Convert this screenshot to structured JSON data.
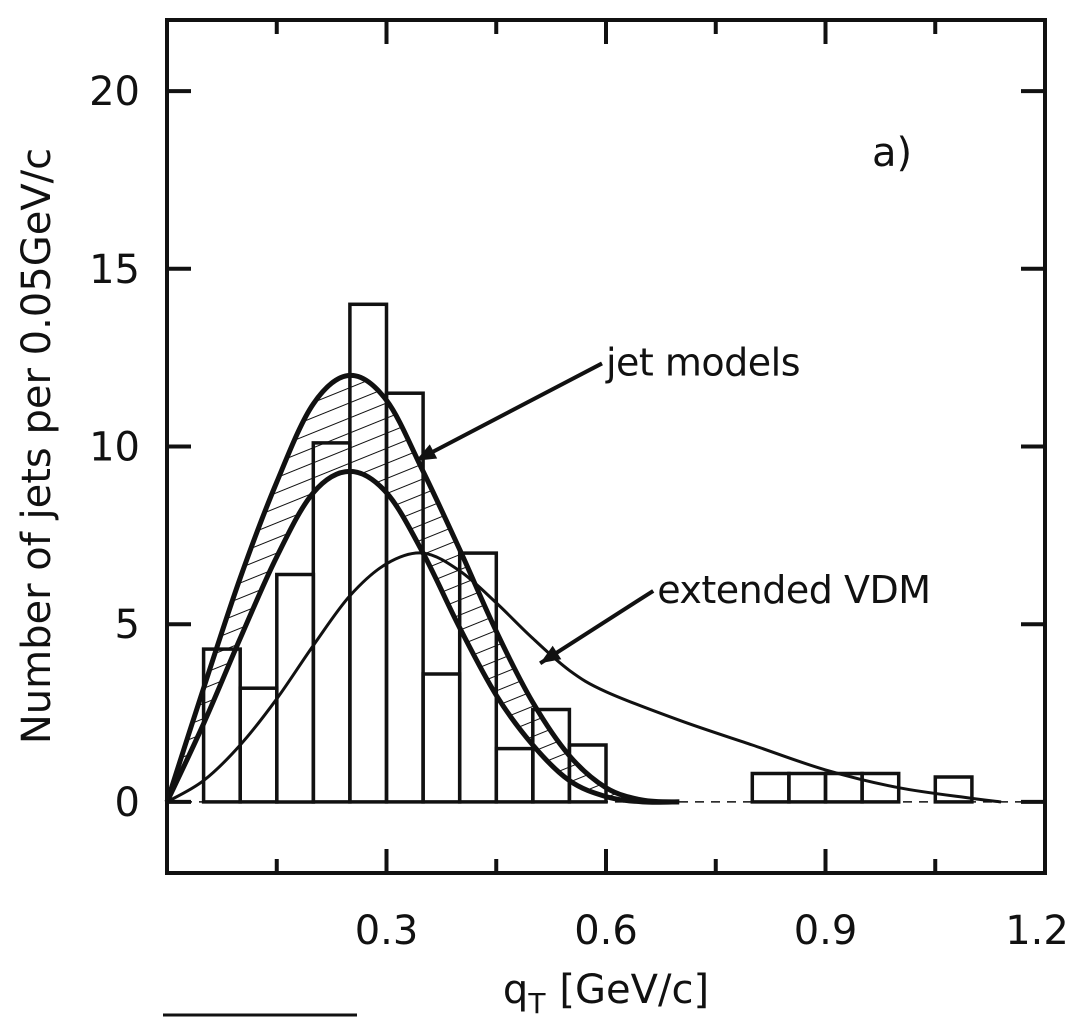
{
  "chart_data": {
    "type": "line",
    "panel_label": "a)",
    "xlabel": "q",
    "xlabel_sub": "T",
    "xlabel_unit": "[GeV/c]",
    "ylabel": "Number of jets per 0.05GeV/c",
    "xlim": [
      0.0,
      1.2
    ],
    "ylim": [
      -2,
      22
    ],
    "x_ticks": [
      0.3,
      0.6,
      0.9,
      1.2
    ],
    "x_tick_labels": [
      "0.3",
      "0.6",
      "0.9",
      "1.2"
    ],
    "x_minor_ticks": [
      0.0,
      0.15,
      0.45,
      0.75,
      1.05
    ],
    "y_ticks": [
      0,
      5,
      10,
      15,
      20
    ],
    "y_tick_labels": [
      "0",
      "5",
      "10",
      "15",
      "20"
    ],
    "grid": false,
    "histogram": {
      "bin_width": 0.05,
      "bin_edges": [
        0.0,
        0.05,
        0.1,
        0.15,
        0.2,
        0.25,
        0.3,
        0.35,
        0.4,
        0.45,
        0.5,
        0.55,
        0.6,
        0.65,
        0.7,
        0.75,
        0.8,
        0.85,
        0.9,
        0.95,
        1.0,
        1.05,
        1.1
      ],
      "counts": [
        0,
        4.3,
        3.2,
        6.4,
        10.1,
        14.0,
        11.5,
        3.6,
        7.0,
        1.5,
        2.6,
        1.6,
        0,
        0,
        0,
        0,
        0.8,
        0.8,
        0.8,
        0.8,
        0,
        0.7
      ]
    },
    "series": [
      {
        "name": "jet models",
        "band": true,
        "hatched": true,
        "x": [
          0.0,
          0.05,
          0.1,
          0.15,
          0.2,
          0.25,
          0.3,
          0.35,
          0.4,
          0.45,
          0.5,
          0.55,
          0.6,
          0.65,
          0.7
        ],
        "upper": [
          0.0,
          3.2,
          6.3,
          9.0,
          11.2,
          12.0,
          11.3,
          9.3,
          7.1,
          4.8,
          2.8,
          1.3,
          0.4,
          0.05,
          0.0
        ],
        "lower": [
          0.0,
          2.2,
          4.6,
          6.9,
          8.7,
          9.3,
          8.7,
          7.0,
          4.9,
          3.0,
          1.6,
          0.6,
          0.15,
          0.0,
          0.0
        ]
      },
      {
        "name": "extended VDM",
        "x": [
          0.0,
          0.05,
          0.1,
          0.15,
          0.2,
          0.25,
          0.3,
          0.35,
          0.4,
          0.45,
          0.5,
          0.55,
          0.6,
          0.7,
          0.8,
          0.9,
          1.0,
          1.1,
          1.14
        ],
        "y": [
          0.0,
          0.6,
          1.6,
          2.9,
          4.4,
          5.8,
          6.7,
          7.0,
          6.5,
          5.6,
          4.6,
          3.7,
          3.1,
          2.3,
          1.6,
          0.9,
          0.4,
          0.1,
          0.0
        ]
      }
    ],
    "annotations": [
      {
        "text": "jet models",
        "x": 0.6,
        "y": 12.0,
        "arrow_to": [
          0.34,
          9.6
        ]
      },
      {
        "text": "extended VDM",
        "x": 0.67,
        "y": 5.6,
        "arrow_to": [
          0.51,
          3.9
        ]
      }
    ]
  }
}
